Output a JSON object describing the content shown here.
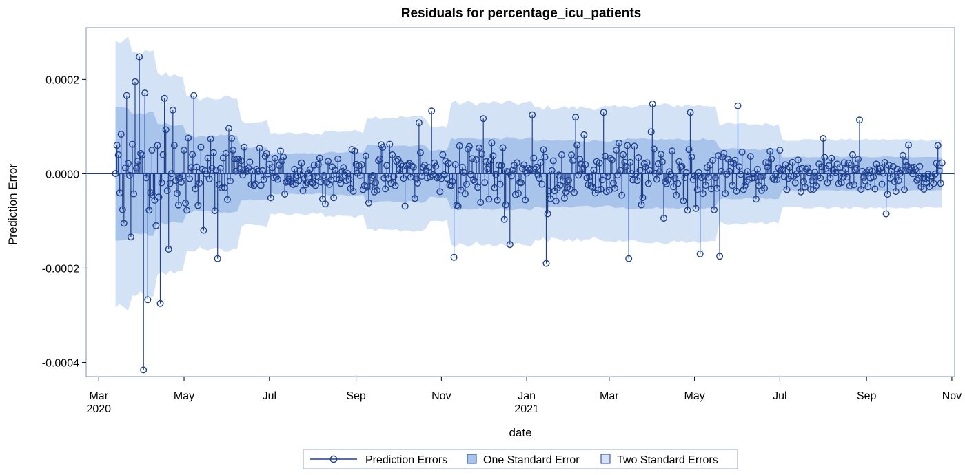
{
  "chart_data": {
    "type": "line",
    "subtype": "residual-needle",
    "title": "Residuals for percentage_icu_patients",
    "xlabel": "date",
    "ylabel": "Prediction Error",
    "xlim": [
      "2020-02-21",
      "2021-11-03"
    ],
    "ylim": [
      -0.00043,
      0.00031
    ],
    "y_ticks": [
      {
        "value": 0.0002,
        "label": "0.0002"
      },
      {
        "value": 0.0,
        "label": "0.0000"
      },
      {
        "value": -0.0002,
        "label": "-0.0002"
      },
      {
        "value": -0.0004,
        "label": "-0.0004"
      }
    ],
    "x_ticks": [
      {
        "date": "2020-03-01",
        "label": "Mar",
        "sublabel": "2020"
      },
      {
        "date": "2020-05-01",
        "label": "May",
        "sublabel": ""
      },
      {
        "date": "2020-07-01",
        "label": "Jul",
        "sublabel": ""
      },
      {
        "date": "2020-09-01",
        "label": "Sep",
        "sublabel": ""
      },
      {
        "date": "2020-11-01",
        "label": "Nov",
        "sublabel": ""
      },
      {
        "date": "2021-01-01",
        "label": "Jan",
        "sublabel": "2021"
      },
      {
        "date": "2021-03-01",
        "label": "Mar",
        "sublabel": ""
      },
      {
        "date": "2021-05-01",
        "label": "May",
        "sublabel": ""
      },
      {
        "date": "2021-07-01",
        "label": "Jul",
        "sublabel": ""
      },
      {
        "date": "2021-09-01",
        "label": "Sep",
        "sublabel": ""
      },
      {
        "date": "2021-11-01",
        "label": "Nov",
        "sublabel": ""
      }
    ],
    "series": [
      {
        "name": "Prediction Errors",
        "dates": [
          "2020-03-15",
          "2020-03-18",
          "2020-03-21",
          "2020-03-24",
          "2020-03-27",
          "2020-03-30",
          "2020-04-02",
          "2020-04-05",
          "2020-04-08",
          "2020-04-11",
          "2020-04-14",
          "2020-04-17",
          "2020-04-20",
          "2020-04-23",
          "2020-05-01",
          "2020-05-08",
          "2020-05-15",
          "2020-05-25",
          "2020-06-05",
          "2020-07-01",
          "2020-08-01",
          "2020-09-01",
          "2020-10-01",
          "2020-10-16",
          "2020-10-25",
          "2020-11-10",
          "2020-12-01",
          "2020-12-20",
          "2021-01-05",
          "2021-01-15",
          "2021-02-05",
          "2021-02-25",
          "2021-03-15",
          "2021-04-01",
          "2021-04-28",
          "2021-05-05",
          "2021-05-19",
          "2021-06-01",
          "2021-07-01",
          "2021-08-01",
          "2021-08-27",
          "2021-09-15",
          "2021-10-01",
          "2021-10-22"
        ],
        "values": [
          4e-05,
          -7.6e-05,
          0.000166,
          -0.000134,
          0.000195,
          0.000248,
          -0.000416,
          -0.000267,
          5e-05,
          -0.00011,
          -0.000275,
          0.00016,
          -0.00016,
          0.000135,
          5e-05,
          0.000166,
          -0.00012,
          -0.00018,
          5e-05,
          2e-05,
          -2e-05,
          2e-05,
          3e-05,
          0.000108,
          0.000133,
          -0.000177,
          0.000117,
          -0.00015,
          0.000125,
          -0.00019,
          0.00012,
          0.00013,
          -0.00018,
          0.000148,
          0.00013,
          -0.00017,
          -0.000175,
          0.000144,
          5e-05,
          7.5e-05,
          0.000114,
          -8.5e-05,
          6.1e-05,
          6e-05
        ]
      }
    ],
    "bands": [
      {
        "name": "One Standard Error",
        "color": "#a8c4ea"
      },
      {
        "name": "Two Standard Errors",
        "color": "#d3e2f5"
      }
    ],
    "line_color": "#1f3f8f",
    "grid": false,
    "legend_position": "bottom"
  }
}
